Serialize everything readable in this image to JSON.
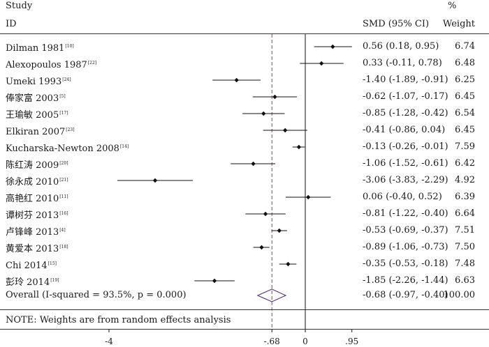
{
  "header": {
    "study_line1": "Study",
    "study_line2": "ID",
    "smd_label": "SMD (95% CI)",
    "weight_line1": "%",
    "weight_line2": "Weight"
  },
  "note": "NOTE: Weights are from random effects analysis",
  "chart_data": {
    "type": "forest",
    "studies": [
      {
        "name": "Dilman 1981",
        "ref": "[10]",
        "smd": 0.56,
        "lo": 0.18,
        "hi": 0.95,
        "ci_text": "0.56 (0.18, 0.95)",
        "weight": "6.74"
      },
      {
        "name": "Alexopoulos 1987",
        "ref": "[22]",
        "smd": 0.33,
        "lo": -0.11,
        "hi": 0.78,
        "ci_text": "0.33 (-0.11, 0.78)",
        "weight": "6.48"
      },
      {
        "name": "Umeki 1993",
        "ref": "[24]",
        "smd": -1.4,
        "lo": -1.89,
        "hi": -0.91,
        "ci_text": "-1.40 (-1.89, -0.91)",
        "weight": "6.25"
      },
      {
        "name": "俸家富 2003",
        "ref": "[5]",
        "smd": -0.62,
        "lo": -1.07,
        "hi": -0.17,
        "ci_text": "-0.62 (-1.07, -0.17)",
        "weight": "6.45"
      },
      {
        "name": "王瑜敏 2005",
        "ref": "[17]",
        "smd": -0.85,
        "lo": -1.28,
        "hi": -0.42,
        "ci_text": "-0.85 (-1.28, -0.42)",
        "weight": "6.54"
      },
      {
        "name": "Elkiran 2007",
        "ref": "[23]",
        "smd": -0.41,
        "lo": -0.86,
        "hi": 0.04,
        "ci_text": "-0.41 (-0.86, 0.04)",
        "weight": "6.45"
      },
      {
        "name": "Kucharska-Newton 2008",
        "ref": "[14]",
        "smd": -0.13,
        "lo": -0.26,
        "hi": -0.01,
        "ci_text": "-0.13 (-0.26, -0.01)",
        "weight": "7.59"
      },
      {
        "name": "陈红涛 2009",
        "ref": "[20]",
        "smd": -1.06,
        "lo": -1.52,
        "hi": -0.61,
        "ci_text": "-1.06 (-1.52, -0.61)",
        "weight": "6.42"
      },
      {
        "name": "徐永成 2010",
        "ref": "[21]",
        "smd": -3.06,
        "lo": -3.83,
        "hi": -2.29,
        "ci_text": "-3.06 (-3.83, -2.29)",
        "weight": "4.92"
      },
      {
        "name": "高艳红 2010",
        "ref": "[11]",
        "smd": 0.06,
        "lo": -0.4,
        "hi": 0.52,
        "ci_text": "0.06 (-0.40, 0.52)",
        "weight": "6.39"
      },
      {
        "name": "谭树芬 2013",
        "ref": "[16]",
        "smd": -0.81,
        "lo": -1.22,
        "hi": -0.4,
        "ci_text": "-0.81 (-1.22, -0.40)",
        "weight": "6.64"
      },
      {
        "name": "卢锋峰 2013",
        "ref": "[4]",
        "smd": -0.53,
        "lo": -0.69,
        "hi": -0.37,
        "ci_text": "-0.53 (-0.69, -0.37)",
        "weight": "7.51"
      },
      {
        "name": "黄爱本 2013",
        "ref": "[18]",
        "smd": -0.89,
        "lo": -1.06,
        "hi": -0.73,
        "ci_text": "-0.89 (-1.06, -0.73)",
        "weight": "7.50"
      },
      {
        "name": "Chi 2014",
        "ref": "[15]",
        "smd": -0.35,
        "lo": -0.53,
        "hi": -0.18,
        "ci_text": "-0.35 (-0.53, -0.18)",
        "weight": "7.48"
      },
      {
        "name": "彭玲 2014",
        "ref": "[19]",
        "smd": -1.85,
        "lo": -2.26,
        "hi": -1.44,
        "ci_text": "-1.85 (-2.26, -1.44)",
        "weight": "6.63"
      }
    ],
    "overall": {
      "label": "Overall  (I-squared = 93.5%, p = 0.000)",
      "smd": -0.68,
      "lo": -0.97,
      "hi": -0.4,
      "ci_text": "-0.68 (-0.97, -0.40)",
      "weight": "100.00"
    },
    "x_ticks": [
      {
        "value": -4,
        "label": "-4"
      },
      {
        "value": -0.68,
        "label": "-.68"
      },
      {
        "value": 0,
        "label": "0"
      },
      {
        "value": 0.95,
        "label": ".95"
      }
    ],
    "null_line": 0,
    "pooled_line": -0.68,
    "colors": {
      "marker": "#111111",
      "diamond": "#5a3b8c",
      "pooled_line": "#a04040",
      "axis": "#111111"
    }
  }
}
